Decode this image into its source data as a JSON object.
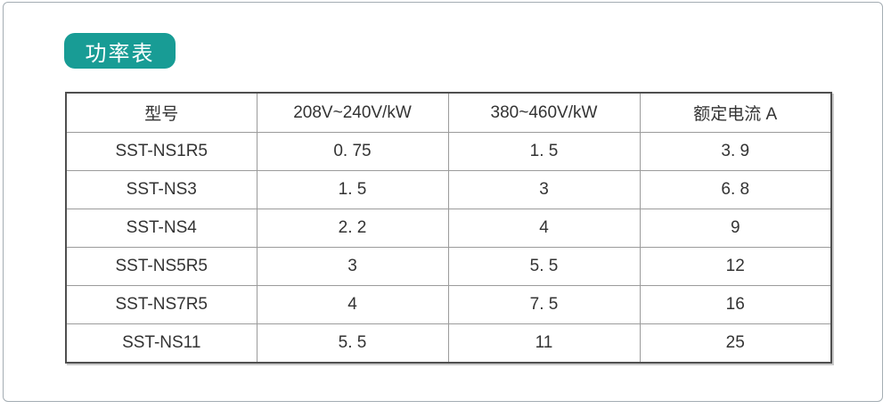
{
  "title_badge": {
    "label": "功率表"
  },
  "colors": {
    "badge_bg": "#189c95",
    "badge_text": "#ffffff",
    "table_outer_border": "#4f4f4f",
    "grid_line": "#9b9b9b",
    "text": "#333333",
    "frame_border": "#a4adb3"
  },
  "table": {
    "headers": [
      "型号",
      "208V~240V/kW",
      "380~460V/kW",
      "额定电流 A"
    ],
    "rows": [
      [
        "SST-NS1R5",
        "0. 75",
        "1. 5",
        "3. 9"
      ],
      [
        "SST-NS3",
        "1. 5",
        "3",
        "6. 8"
      ],
      [
        "SST-NS4",
        "2. 2",
        "4",
        "9"
      ],
      [
        "SST-NS5R5",
        "3",
        "5. 5",
        "12"
      ],
      [
        "SST-NS7R5",
        "4",
        "7. 5",
        "16"
      ],
      [
        "SST-NS11",
        "5. 5",
        "11",
        "25"
      ]
    ]
  }
}
